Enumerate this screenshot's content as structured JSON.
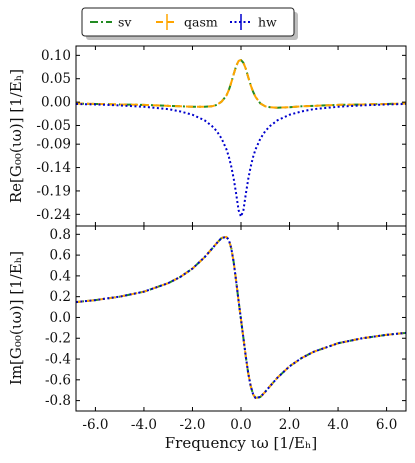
{
  "chart_data": [
    {
      "type": "line",
      "ylabel": "Re[G₀₀(ιω)] [1/Eₕ]",
      "xlim": [
        -6.8,
        6.8
      ],
      "ylim": [
        -0.265,
        0.12
      ],
      "yticks": [
        "0.10",
        "0.05",
        "0.00",
        "-0.05",
        "-0.09",
        "-0.14",
        "-0.19",
        "-0.24"
      ],
      "ytick_values": [
        0.1,
        0.05,
        0.0,
        -0.05,
        -0.09,
        -0.14,
        -0.19,
        -0.24
      ],
      "x": [
        -6.8,
        -6,
        -5,
        -4,
        -3,
        -2.5,
        -2,
        -1.5,
        -1.2,
        -1,
        -0.8,
        -0.6,
        -0.5,
        -0.4,
        -0.3,
        -0.2,
        -0.1,
        0,
        0.1,
        0.2,
        0.3,
        0.4,
        0.5,
        0.6,
        0.8,
        1,
        1.2,
        1.5,
        2,
        2.5,
        3,
        4,
        5,
        6,
        6.8
      ],
      "series": [
        {
          "name": "sv",
          "color": "#228B22",
          "dash": "8,3,2,3",
          "values": [
            -0.003,
            -0.004,
            -0.005,
            -0.006,
            -0.008,
            -0.009,
            -0.01,
            -0.01,
            -0.009,
            -0.006,
            0.001,
            0.014,
            0.026,
            0.042,
            0.06,
            0.077,
            0.088,
            0.09,
            0.084,
            0.071,
            0.053,
            0.036,
            0.022,
            0.011,
            -0.003,
            -0.009,
            -0.011,
            -0.012,
            -0.011,
            -0.009,
            -0.008,
            -0.006,
            -0.005,
            -0.004,
            -0.003
          ]
        },
        {
          "name": "qasm",
          "color": "#FFA500",
          "dash": "7,4",
          "values": [
            -0.003,
            -0.004,
            -0.005,
            -0.006,
            -0.008,
            -0.009,
            -0.01,
            -0.01,
            -0.009,
            -0.006,
            0.001,
            0.014,
            0.026,
            0.042,
            0.06,
            0.077,
            0.088,
            0.09,
            0.084,
            0.071,
            0.053,
            0.036,
            0.022,
            0.011,
            -0.003,
            -0.009,
            -0.011,
            -0.012,
            -0.011,
            -0.009,
            -0.008,
            -0.006,
            -0.005,
            -0.004,
            -0.003
          ]
        },
        {
          "name": "hw",
          "color": "#0000CD",
          "dash": "2,2.5",
          "values": [
            -0.004,
            -0.005,
            -0.007,
            -0.01,
            -0.015,
            -0.02,
            -0.027,
            -0.039,
            -0.051,
            -0.062,
            -0.078,
            -0.101,
            -0.117,
            -0.138,
            -0.164,
            -0.196,
            -0.231,
            -0.245,
            -0.231,
            -0.196,
            -0.164,
            -0.138,
            -0.117,
            -0.101,
            -0.078,
            -0.062,
            -0.051,
            -0.039,
            -0.027,
            -0.02,
            -0.015,
            -0.01,
            -0.007,
            -0.005,
            -0.004
          ]
        }
      ]
    },
    {
      "type": "line",
      "ylabel": "Im[G₀₀(ιω)] [1/Eₕ]",
      "xlabel": "Frequency ιω [1/Eₕ]",
      "xlim": [
        -6.8,
        6.8
      ],
      "ylim": [
        -0.9,
        0.88
      ],
      "xticks": [
        "-6.0",
        "-4.0",
        "-2.0",
        "0.0",
        "2.0",
        "4.0",
        "6.0"
      ],
      "xtick_values": [
        -6,
        -4,
        -2,
        0,
        2,
        4,
        6
      ],
      "yticks": [
        "0.8",
        "0.6",
        "0.4",
        "0.2",
        "0.0",
        "-0.2",
        "-0.4",
        "-0.6",
        "-0.8"
      ],
      "ytick_values": [
        0.8,
        0.6,
        0.4,
        0.2,
        0.0,
        -0.2,
        -0.4,
        -0.6,
        -0.8
      ],
      "x": [
        -6.8,
        -6,
        -5,
        -4,
        -3,
        -2.5,
        -2,
        -1.5,
        -1.2,
        -1,
        -0.8,
        -0.6,
        -0.5,
        -0.4,
        -0.3,
        -0.2,
        -0.1,
        0,
        0.1,
        0.2,
        0.3,
        0.4,
        0.5,
        0.6,
        0.8,
        1,
        1.2,
        1.5,
        2,
        2.5,
        3,
        4,
        5,
        6,
        6.8
      ],
      "series": [
        {
          "name": "sv",
          "color": "#228B22",
          "dash": "8,3,2,3",
          "values": [
            0.148,
            0.167,
            0.2,
            0.248,
            0.33,
            0.39,
            0.47,
            0.58,
            0.66,
            0.715,
            0.765,
            0.775,
            0.745,
            0.665,
            0.53,
            0.35,
            0.16,
            -0.02,
            -0.2,
            -0.38,
            -0.54,
            -0.66,
            -0.74,
            -0.775,
            -0.765,
            -0.715,
            -0.66,
            -0.58,
            -0.47,
            -0.39,
            -0.33,
            -0.248,
            -0.2,
            -0.167,
            -0.148
          ]
        },
        {
          "name": "qasm",
          "color": "#FFA500",
          "dash": "7,4",
          "values": [
            0.148,
            0.167,
            0.2,
            0.248,
            0.33,
            0.39,
            0.47,
            0.58,
            0.66,
            0.715,
            0.765,
            0.775,
            0.745,
            0.665,
            0.53,
            0.35,
            0.16,
            -0.02,
            -0.2,
            -0.38,
            -0.54,
            -0.66,
            -0.74,
            -0.775,
            -0.765,
            -0.715,
            -0.66,
            -0.58,
            -0.47,
            -0.39,
            -0.33,
            -0.248,
            -0.2,
            -0.167,
            -0.148
          ]
        },
        {
          "name": "hw",
          "color": "#0000CD",
          "dash": "2,2.5",
          "values": [
            0.148,
            0.167,
            0.2,
            0.248,
            0.33,
            0.39,
            0.47,
            0.58,
            0.66,
            0.715,
            0.765,
            0.775,
            0.745,
            0.665,
            0.53,
            0.35,
            0.16,
            -0.02,
            -0.2,
            -0.38,
            -0.54,
            -0.66,
            -0.74,
            -0.775,
            -0.765,
            -0.715,
            -0.66,
            -0.58,
            -0.47,
            -0.39,
            -0.33,
            -0.248,
            -0.2,
            -0.167,
            -0.148
          ]
        }
      ]
    }
  ],
  "legend": {
    "placement": "top",
    "items": [
      {
        "label": "sv",
        "color": "#228B22",
        "dash": "8,3,2,3"
      },
      {
        "label": "qasm",
        "color": "#FFA500",
        "dash": "7,4"
      },
      {
        "label": "hw",
        "color": "#0000CD",
        "dash": "2,2.5"
      }
    ]
  }
}
